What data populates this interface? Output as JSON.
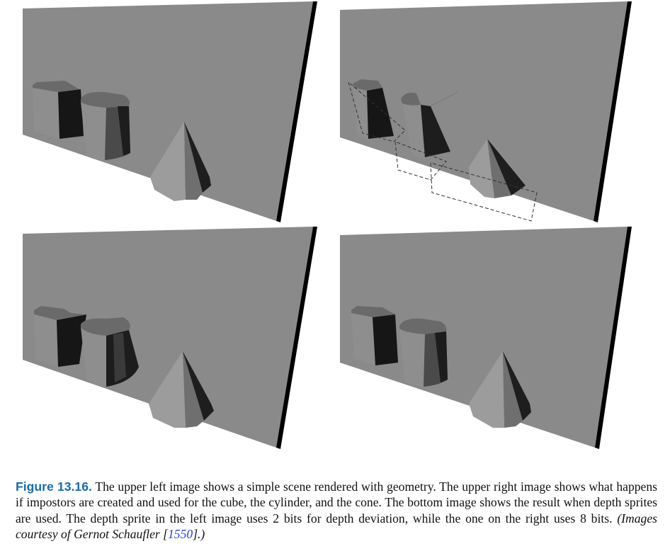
{
  "figure": {
    "label": "Figure 13.16.",
    "caption": "The upper left image shows a simple scene rendered with geometry. The upper right image shows what happens if impostors are created and used for the cube, the cylinder, and the cone. The bottom image shows the result when depth sprites are used. The depth sprite in the left image uses 2 bits for depth deviation, while the one on the right uses 8 bits.",
    "credit_prefix": "(Images courtesy of Gernot Schaufler [",
    "credit_ref": "1550",
    "credit_suffix": "].)"
  },
  "panels": [
    {
      "id": "upper-left",
      "rendering": "geometry",
      "impostor_frames": false
    },
    {
      "id": "upper-right",
      "rendering": "impostors",
      "impostor_frames": true
    },
    {
      "id": "lower-left",
      "rendering": "depth sprites",
      "depth_bits": 2,
      "impostor_frames": false
    },
    {
      "id": "lower-right",
      "rendering": "depth sprites",
      "depth_bits": 8,
      "impostor_frames": false
    }
  ],
  "colors": {
    "wall": "#8a8a8a",
    "wall_edge": "#000000",
    "object_light": "#8e8e8e",
    "object_mid": "#6a6a6a",
    "object_dark": "#161616",
    "label_blue": "#1a6ba8",
    "ref_blue": "#2a3fd6"
  }
}
